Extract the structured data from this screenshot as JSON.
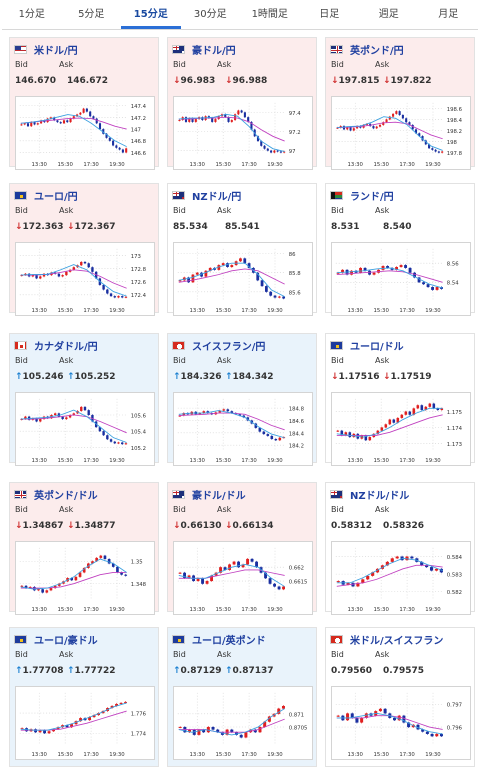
{
  "tabs": [
    {
      "label": "1分足",
      "active": false
    },
    {
      "label": "5分足",
      "active": false
    },
    {
      "label": "15分足",
      "active": true
    },
    {
      "label": "30分足",
      "active": false
    },
    {
      "label": "1時間足",
      "active": false
    },
    {
      "label": "日足",
      "active": false
    },
    {
      "label": "週足",
      "active": false
    },
    {
      "label": "月足",
      "active": false
    }
  ],
  "labels": {
    "bid": "Bid",
    "ask": "Ask"
  },
  "x_ticks": [
    "13:30",
    "15:30",
    "17:30",
    "19:30"
  ],
  "colors": {
    "up_arrow": "#1a7fd0",
    "down_arrow": "#d03030",
    "candle_up": "#e02020",
    "candle_down": "#1a2fa0",
    "ma_fast": "#3aa0e0",
    "ma_slow": "#c040c0",
    "active_tab": "#2b6fd6"
  },
  "cards": [
    {
      "pair": "米ドル/円",
      "flag": "us",
      "bg": "pink",
      "arrow": "",
      "bid": "146.670",
      "ask": "146.672",
      "y_ticks": [
        "147.4",
        "147.2",
        "147",
        "146.8",
        "146.6"
      ],
      "chart_data": {
        "type": "candlestick",
        "y_range": [
          146.55,
          147.45
        ],
        "close": [
          147.08,
          147.1,
          147.05,
          147.12,
          147.08,
          147.1,
          147.15,
          147.12,
          147.18,
          147.2,
          147.15,
          147.12,
          147.1,
          147.15,
          147.12,
          147.18,
          147.22,
          147.25,
          147.28,
          147.35,
          147.3,
          147.22,
          147.18,
          147.1,
          147.0,
          146.92,
          146.85,
          146.8,
          146.72,
          146.68,
          146.65,
          146.6,
          146.67
        ],
        "ma_fast": [
          147.1,
          147.12,
          147.15,
          147.2,
          147.25,
          147.22,
          147.1,
          146.95,
          146.8,
          146.7
        ],
        "ma_slow": [
          147.1,
          147.12,
          147.14,
          147.16,
          147.18,
          147.19,
          147.18,
          147.12,
          147.05,
          147.0
        ]
      }
    },
    {
      "pair": "豪ドル/円",
      "flag": "au",
      "bg": "pink",
      "arrow": "down",
      "bid": "96.983",
      "ask": "96.988",
      "y_ticks": [
        "97.4",
        "97.2",
        "97"
      ],
      "chart_data": {
        "type": "candlestick",
        "y_range": [
          96.95,
          97.5
        ],
        "close": [
          97.32,
          97.35,
          97.3,
          97.34,
          97.3,
          97.33,
          97.35,
          97.32,
          97.36,
          97.34,
          97.3,
          97.33,
          97.36,
          97.38,
          97.35,
          97.3,
          97.32,
          97.38,
          97.42,
          97.4,
          97.35,
          97.3,
          97.22,
          97.15,
          97.1,
          97.05,
          97.02,
          97.0,
          96.98,
          97.0,
          96.99,
          96.98,
          96.99
        ],
        "ma_fast": [
          97.33,
          97.34,
          97.34,
          97.35,
          97.38,
          97.36,
          97.25,
          97.1,
          97.02,
          96.99
        ],
        "ma_slow": [
          97.33,
          97.33,
          97.34,
          97.34,
          97.35,
          97.34,
          97.3,
          97.22,
          97.15,
          97.1
        ]
      }
    },
    {
      "pair": "英ポンド/円",
      "flag": "gb",
      "bg": "pink",
      "arrow": "down",
      "bid": "197.815",
      "ask": "197.822",
      "y_ticks": [
        "198.6",
        "198.4",
        "198.2",
        "198",
        "197.8"
      ],
      "chart_data": {
        "type": "candlestick",
        "y_range": [
          197.75,
          198.7
        ],
        "close": [
          198.25,
          198.28,
          198.22,
          198.26,
          198.2,
          198.24,
          198.28,
          198.25,
          198.3,
          198.32,
          198.28,
          198.24,
          198.27,
          198.3,
          198.35,
          198.4,
          198.45,
          198.5,
          198.55,
          198.48,
          198.42,
          198.35,
          198.3,
          198.22,
          198.15,
          198.1,
          198.02,
          197.95,
          197.88,
          197.85,
          197.82,
          197.8,
          197.82
        ],
        "ma_fast": [
          198.25,
          198.27,
          198.28,
          198.35,
          198.45,
          198.42,
          198.3,
          198.1,
          197.92,
          197.84
        ],
        "ma_slow": [
          198.25,
          198.26,
          198.27,
          198.3,
          198.34,
          198.35,
          198.32,
          198.22,
          198.12,
          198.05
        ]
      }
    },
    {
      "pair": "ユーロ/円",
      "flag": "eu",
      "bg": "pink",
      "arrow": "down",
      "bid": "172.363",
      "ask": "172.367",
      "y_ticks": [
        "173",
        "172.8",
        "172.6",
        "172.4"
      ],
      "chart_data": {
        "type": "candlestick",
        "y_range": [
          172.3,
          173.1
        ],
        "close": [
          172.7,
          172.72,
          172.68,
          172.7,
          172.65,
          172.68,
          172.72,
          172.7,
          172.74,
          172.72,
          172.68,
          172.7,
          172.75,
          172.78,
          172.82,
          172.85,
          172.9,
          172.88,
          172.82,
          172.75,
          172.65,
          172.55,
          172.48,
          172.42,
          172.38,
          172.36,
          172.38,
          172.36,
          172.37
        ],
        "ma_fast": [
          172.7,
          172.71,
          172.71,
          172.78,
          172.86,
          172.78,
          172.6,
          172.45,
          172.38
        ],
        "ma_slow": [
          172.7,
          172.7,
          172.71,
          172.74,
          172.78,
          172.76,
          172.68,
          172.58,
          172.5
        ]
      }
    },
    {
      "pair": "NZドル/円",
      "flag": "nz",
      "bg": "white",
      "arrow": "",
      "bid": "85.534",
      "ask": "85.541",
      "y_ticks": [
        "86",
        "85.8",
        "85.6"
      ],
      "chart_data": {
        "type": "candlestick",
        "y_range": [
          85.5,
          86.05
        ],
        "close": [
          85.72,
          85.75,
          85.7,
          85.78,
          85.8,
          85.76,
          85.82,
          85.85,
          85.83,
          85.88,
          85.9,
          85.86,
          85.88,
          85.92,
          85.95,
          85.9,
          85.85,
          85.8,
          85.72,
          85.66,
          85.6,
          85.56,
          85.54,
          85.55,
          85.53
        ],
        "ma_fast": [
          85.72,
          85.75,
          85.8,
          85.86,
          85.9,
          85.9,
          85.78,
          85.62,
          85.55
        ],
        "ma_slow": [
          85.7,
          85.72,
          85.75,
          85.78,
          85.82,
          85.84,
          85.82,
          85.75,
          85.68
        ]
      }
    },
    {
      "pair": "ランド/円",
      "flag": "za",
      "bg": "white",
      "arrow": "",
      "bid": "8.531",
      "ask": "8.540",
      "y_ticks": [
        "8.56",
        "8.54"
      ],
      "chart_data": {
        "type": "candlestick",
        "y_range": [
          8.52,
          8.575
        ],
        "close": [
          8.55,
          8.553,
          8.548,
          8.552,
          8.55,
          8.555,
          8.552,
          8.548,
          8.55,
          8.553,
          8.557,
          8.555,
          8.553,
          8.556,
          8.558,
          8.555,
          8.55,
          8.545,
          8.54,
          8.538,
          8.535,
          8.532,
          8.535,
          8.533
        ],
        "ma_fast": [
          8.55,
          8.551,
          8.552,
          8.554,
          8.555,
          8.552,
          8.545,
          8.538,
          8.534
        ],
        "ma_slow": [
          8.548,
          8.549,
          8.55,
          8.551,
          8.552,
          8.551,
          8.548,
          8.544,
          8.54
        ]
      }
    },
    {
      "pair": "カナダドル/円",
      "flag": "ca",
      "bg": "blue",
      "arrow": "up",
      "bid": "105.246",
      "ask": "105.252",
      "y_ticks": [
        "105.6",
        "105.4",
        "105.2"
      ],
      "chart_data": {
        "type": "candlestick",
        "y_range": [
          105.15,
          105.8
        ],
        "close": [
          105.55,
          105.58,
          105.54,
          105.56,
          105.52,
          105.55,
          105.58,
          105.56,
          105.6,
          105.62,
          105.58,
          105.55,
          105.57,
          105.6,
          105.62,
          105.65,
          105.7,
          105.66,
          105.6,
          105.52,
          105.45,
          105.4,
          105.35,
          105.3,
          105.27,
          105.25,
          105.26,
          105.24,
          105.25
        ],
        "ma_fast": [
          105.55,
          105.56,
          105.57,
          105.6,
          105.66,
          105.58,
          105.45,
          105.32,
          105.26
        ],
        "ma_slow": [
          105.55,
          105.55,
          105.56,
          105.58,
          105.6,
          105.58,
          105.52,
          105.45,
          105.38
        ]
      }
    },
    {
      "pair": "スイスフラン/円",
      "flag": "ch",
      "bg": "blue",
      "arrow": "up",
      "bid": "184.326",
      "ask": "184.342",
      "y_ticks": [
        "184.8",
        "184.6",
        "184.4",
        "184.2"
      ],
      "chart_data": {
        "type": "candlestick",
        "y_range": [
          184.1,
          184.95
        ],
        "close": [
          184.68,
          184.72,
          184.7,
          184.74,
          184.7,
          184.72,
          184.75,
          184.72,
          184.7,
          184.73,
          184.76,
          184.78,
          184.75,
          184.72,
          184.7,
          184.68,
          184.65,
          184.6,
          184.55,
          184.48,
          184.42,
          184.38,
          184.35,
          184.3,
          184.28,
          184.32,
          184.33
        ],
        "ma_fast": [
          184.7,
          184.72,
          184.72,
          184.76,
          184.72,
          184.65,
          184.5,
          184.38,
          184.32
        ],
        "ma_slow": [
          184.68,
          184.69,
          184.7,
          184.72,
          184.72,
          184.7,
          184.62,
          184.52,
          184.45
        ]
      }
    },
    {
      "pair": "ユーロ/ドル",
      "flag": "eu",
      "bg": "white",
      "arrow": "down",
      "bid": "1.17516",
      "ask": "1.17519",
      "y_ticks": [
        "1.175",
        "1.174",
        "1.173"
      ],
      "chart_data": {
        "type": "candlestick",
        "y_range": [
          1.1725,
          1.1758
        ],
        "close": [
          1.1738,
          1.1735,
          1.1737,
          1.1734,
          1.1736,
          1.1733,
          1.1735,
          1.1732,
          1.1734,
          1.1736,
          1.1738,
          1.174,
          1.1742,
          1.1745,
          1.1743,
          1.1746,
          1.1748,
          1.175,
          1.1748,
          1.1752,
          1.1754,
          1.1751,
          1.1753,
          1.1755,
          1.1752,
          1.1751,
          1.1752
        ],
        "ma_fast": [
          1.1736,
          1.1735,
          1.1734,
          1.1736,
          1.174,
          1.1745,
          1.1749,
          1.1752,
          1.1752
        ],
        "ma_slow": [
          1.1735,
          1.1735,
          1.1735,
          1.1735,
          1.1737,
          1.174,
          1.1743,
          1.1746,
          1.1748
        ]
      }
    },
    {
      "pair": "英ポンド/ドル",
      "flag": "gb",
      "bg": "pink",
      "arrow": "down",
      "bid": "1.34867",
      "ask": "1.34877",
      "y_ticks": [
        "1.35",
        "1.348"
      ],
      "chart_data": {
        "type": "candlestick",
        "y_range": [
          1.3465,
          1.3512
        ],
        "close": [
          1.3478,
          1.3476,
          1.3477,
          1.3474,
          1.3475,
          1.3472,
          1.3474,
          1.3476,
          1.3478,
          1.348,
          1.3482,
          1.3485,
          1.3483,
          1.3486,
          1.349,
          1.3494,
          1.3498,
          1.35,
          1.3503,
          1.3505,
          1.3502,
          1.3498,
          1.3495,
          1.349,
          1.3488,
          1.3487
        ],
        "ma_fast": [
          1.3477,
          1.3475,
          1.3476,
          1.348,
          1.3486,
          1.3495,
          1.3502,
          1.3498,
          1.349
        ],
        "ma_slow": [
          1.3476,
          1.3476,
          1.3476,
          1.3477,
          1.348,
          1.3484,
          1.3488,
          1.349,
          1.349
        ]
      }
    },
    {
      "pair": "豪ドル/ドル",
      "flag": "au",
      "bg": "pink",
      "arrow": "down",
      "bid": "0.66130",
      "ask": "0.66134",
      "y_ticks": [
        "0.662",
        "0.6615"
      ],
      "chart_data": {
        "type": "candlestick",
        "y_range": [
          0.6608,
          0.6627
        ],
        "close": [
          0.6618,
          0.6616,
          0.6617,
          0.6615,
          0.6616,
          0.6614,
          0.6615,
          0.6617,
          0.6618,
          0.662,
          0.6619,
          0.6621,
          0.6622,
          0.662,
          0.6621,
          0.6623,
          0.6622,
          0.662,
          0.6618,
          0.6616,
          0.6614,
          0.6613,
          0.6612,
          0.6613
        ],
        "ma_fast": [
          0.6617,
          0.6616,
          0.6616,
          0.6618,
          0.662,
          0.6621,
          0.662,
          0.6616,
          0.6613
        ],
        "ma_slow": [
          0.6616,
          0.6616,
          0.6616,
          0.6617,
          0.6618,
          0.6619,
          0.6619,
          0.6618,
          0.6617
        ]
      }
    },
    {
      "pair": "NZドル/ドル",
      "flag": "nz",
      "bg": "white",
      "arrow": "",
      "bid": "0.58312",
      "ask": "0.58326",
      "y_ticks": [
        "0.584",
        "0.583",
        "0.582"
      ],
      "chart_data": {
        "type": "candlestick",
        "y_range": [
          0.5815,
          0.5845
        ],
        "close": [
          0.5826,
          0.5824,
          0.5825,
          0.5823,
          0.5825,
          0.5827,
          0.5829,
          0.5831,
          0.5833,
          0.5835,
          0.5837,
          0.5839,
          0.584,
          0.5838,
          0.584,
          0.5839,
          0.5837,
          0.5835,
          0.5834,
          0.5832,
          0.5833,
          0.5831
        ],
        "ma_fast": [
          0.5825,
          0.5825,
          0.5828,
          0.5832,
          0.5836,
          0.5839,
          0.5838,
          0.5835,
          0.5832
        ],
        "ma_slow": [
          0.5823,
          0.5824,
          0.5825,
          0.5827,
          0.583,
          0.5833,
          0.5835,
          0.5835,
          0.5834
        ]
      }
    },
    {
      "pair": "ユーロ/豪ドル",
      "flag": "eu",
      "bg": "blue",
      "arrow": "up",
      "bid": "1.77708",
      "ask": "1.77722",
      "y_ticks": [
        "1.776",
        "1.774"
      ],
      "chart_data": {
        "type": "candlestick",
        "y_range": [
          1.7728,
          1.778
        ],
        "close": [
          1.7745,
          1.7742,
          1.7744,
          1.7741,
          1.7743,
          1.774,
          1.7742,
          1.7744,
          1.7746,
          1.7748,
          1.7746,
          1.7749,
          1.7752,
          1.7755,
          1.7753,
          1.7756,
          1.7758,
          1.776,
          1.7762,
          1.7765,
          1.7767,
          1.7769,
          1.777,
          1.7771
        ],
        "ma_fast": [
          1.7744,
          1.7743,
          1.7743,
          1.7746,
          1.775,
          1.7755,
          1.776,
          1.7766,
          1.777
        ],
        "ma_slow": [
          1.7743,
          1.7743,
          1.7743,
          1.7744,
          1.7747,
          1.775,
          1.7754,
          1.7758,
          1.7762
        ]
      }
    },
    {
      "pair": "ユーロ/英ポンド",
      "flag": "eu",
      "bg": "blue",
      "arrow": "up",
      "bid": "0.87129",
      "ask": "0.87137",
      "y_ticks": [
        "0.871",
        "0.8705"
      ],
      "chart_data": {
        "type": "candlestick",
        "y_range": [
          0.8698,
          0.8718
        ],
        "close": [
          0.8705,
          0.8703,
          0.8704,
          0.8702,
          0.8704,
          0.8703,
          0.8705,
          0.8704,
          0.8703,
          0.8702,
          0.8704,
          0.8703,
          0.8702,
          0.8701,
          0.8703,
          0.8704,
          0.8703,
          0.8705,
          0.8707,
          0.8709,
          0.871,
          0.8712,
          0.8713
        ],
        "ma_fast": [
          0.8704,
          0.8703,
          0.8704,
          0.8703,
          0.8702,
          0.8703,
          0.8705,
          0.8709,
          0.8712
        ],
        "ma_slow": [
          0.8704,
          0.8704,
          0.8704,
          0.8703,
          0.8703,
          0.8703,
          0.8704,
          0.8706,
          0.8708
        ]
      }
    },
    {
      "pair": "米ドル/スイスフラン",
      "flag": "ch",
      "bg": "white",
      "arrow": "",
      "bid": "0.79560",
      "ask": "0.79575",
      "y_ticks": [
        "0.797",
        "0.796"
      ],
      "chart_data": {
        "type": "candlestick",
        "y_range": [
          0.7952,
          0.7975
        ],
        "close": [
          0.7965,
          0.7963,
          0.7966,
          0.7964,
          0.7962,
          0.7964,
          0.7966,
          0.7965,
          0.7967,
          0.7968,
          0.7966,
          0.7964,
          0.7963,
          0.7965,
          0.7962,
          0.796,
          0.7961,
          0.7959,
          0.7958,
          0.7957,
          0.7956,
          0.7957,
          0.7956
        ],
        "ma_fast": [
          0.7964,
          0.7964,
          0.7965,
          0.7966,
          0.7965,
          0.7963,
          0.796,
          0.7958,
          0.7957
        ],
        "ma_slow": [
          0.7964,
          0.7964,
          0.7964,
          0.7965,
          0.7965,
          0.7964,
          0.7962,
          0.796,
          0.7959
        ]
      }
    }
  ]
}
